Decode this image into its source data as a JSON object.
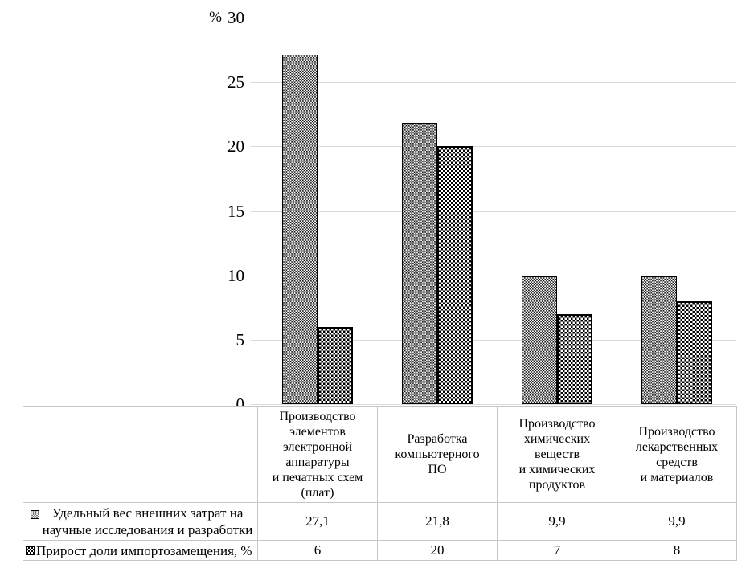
{
  "chart_data": {
    "type": "bar",
    "title": "",
    "xlabel": "",
    "ylabel": "%",
    "ylim": [
      0,
      30
    ],
    "yticks": [
      30,
      25,
      20,
      15,
      10,
      5,
      0
    ],
    "grid": true,
    "legend_position": "table-below",
    "categories": [
      "Производство\nэлементов\nэлектронной\nаппаратуры\nи печатных схем\n(плат)",
      "Разработка\nкомпьютерного\nПО",
      "Производство\nхимических\nвеществ\nи химических\nпродуктов",
      "Производство\nлекарственных\nсредств\nи материалов"
    ],
    "series": [
      {
        "name": "Удельный вес внешних затрат на научные исследования и разработки",
        "pattern": "pat-dots",
        "values": [
          27.1,
          21.8,
          9.9,
          9.9
        ],
        "display": [
          "27,1",
          "21,8",
          "9,9",
          "9,9"
        ]
      },
      {
        "name": "Прирост доли импортозамещения, %",
        "pattern": "pat-check",
        "values": [
          6,
          20,
          7,
          8
        ],
        "display": [
          "6",
          "20",
          "7",
          "8"
        ]
      }
    ],
    "colors": {
      "series1_fill": "#000000",
      "series2_fill": "#ffffff",
      "gridline": "#d9d9d9",
      "table_border": "#c6c6c6",
      "text": "#000000"
    }
  }
}
